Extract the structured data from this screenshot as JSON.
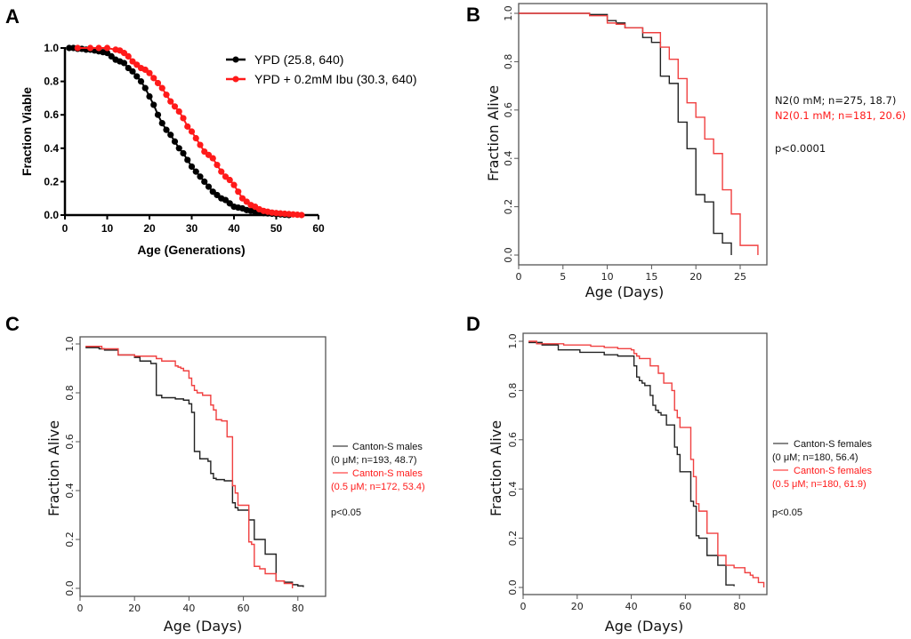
{
  "colors": {
    "black": "#111111",
    "red": "#ff1a1a",
    "red_line": "#f04040",
    "frame": "#555555"
  },
  "chart_data": [
    {
      "id": "A",
      "panel_label": "A",
      "type": "line",
      "style": "markers",
      "xlabel": "Age (Generations)",
      "ylabel": "Fraction Viable",
      "xlim": [
        0,
        60
      ],
      "ylim": [
        0,
        1.0
      ],
      "xticks": [
        0,
        10,
        20,
        30,
        40,
        50,
        60
      ],
      "yticks": [
        "0.0",
        "0.2",
        "0.4",
        "0.6",
        "0.8",
        "1.0"
      ],
      "legend_position": "top-right",
      "series": [
        {
          "name": "YPD (25.8, 640)",
          "color": "black",
          "x": [
            1,
            2,
            3,
            4,
            5,
            6,
            7,
            8,
            9,
            10,
            11,
            12,
            13,
            14,
            15,
            16,
            17,
            18,
            19,
            20,
            21,
            22,
            23,
            24,
            25,
            26,
            27,
            28,
            29,
            30,
            31,
            32,
            33,
            34,
            35,
            36,
            37,
            38,
            39,
            40,
            41,
            42,
            43,
            44,
            45,
            46,
            47,
            48,
            49,
            50,
            51,
            52,
            53
          ],
          "y": [
            1.0,
            1.0,
            0.995,
            0.995,
            0.99,
            0.99,
            0.985,
            0.98,
            0.975,
            0.97,
            0.95,
            0.93,
            0.92,
            0.91,
            0.88,
            0.86,
            0.83,
            0.8,
            0.76,
            0.71,
            0.66,
            0.6,
            0.55,
            0.51,
            0.48,
            0.44,
            0.4,
            0.37,
            0.33,
            0.29,
            0.26,
            0.23,
            0.2,
            0.17,
            0.14,
            0.12,
            0.1,
            0.09,
            0.07,
            0.05,
            0.045,
            0.04,
            0.03,
            0.025,
            0.02,
            0.015,
            0.012,
            0.01,
            0.008,
            0.006,
            0.004,
            0.002,
            0.0
          ]
        },
        {
          "name": "YPD + 0.2mM Ibu (30.3, 640)",
          "color": "red",
          "x": [
            3,
            6,
            8,
            10,
            12,
            13,
            14,
            15,
            16,
            17,
            18,
            19,
            20,
            21,
            22,
            23,
            24,
            25,
            26,
            27,
            28,
            29,
            30,
            31,
            32,
            33,
            34,
            35,
            36,
            37,
            38,
            39,
            40,
            41,
            42,
            43,
            44,
            45,
            46,
            47,
            48,
            49,
            50,
            51,
            52,
            53,
            54,
            55,
            56
          ],
          "y": [
            1.0,
            1.0,
            1.0,
            1.0,
            0.99,
            0.985,
            0.97,
            0.95,
            0.92,
            0.9,
            0.88,
            0.87,
            0.85,
            0.82,
            0.79,
            0.76,
            0.72,
            0.68,
            0.65,
            0.62,
            0.58,
            0.53,
            0.5,
            0.46,
            0.42,
            0.38,
            0.36,
            0.34,
            0.3,
            0.26,
            0.23,
            0.21,
            0.18,
            0.14,
            0.1,
            0.08,
            0.06,
            0.05,
            0.035,
            0.025,
            0.02,
            0.015,
            0.012,
            0.01,
            0.008,
            0.006,
            0.004,
            0.002,
            0.0
          ]
        }
      ]
    },
    {
      "id": "B",
      "panel_label": "B",
      "type": "line",
      "style": "step",
      "xlabel": "Age (Days)",
      "ylabel": "Fraction Alive",
      "xlim": [
        0,
        28
      ],
      "ylim": [
        0,
        1.0
      ],
      "xticks": [
        0,
        5,
        10,
        15,
        20,
        25
      ],
      "yticks": [
        "0.0",
        "0.2",
        "0.4",
        "0.6",
        "0.8",
        "1.0"
      ],
      "legend": [
        "N2(0 mM; n=275, 18.7)",
        "N2(0.1 mM; n=181, 20.6)"
      ],
      "pvalue": "p<0.0001",
      "series": [
        {
          "name": "N2(0 mM; n=275, 18.7)",
          "color": "black",
          "x": [
            0,
            8,
            10,
            11,
            12,
            14,
            15,
            16,
            17,
            18,
            19,
            20,
            21,
            22,
            23,
            24
          ],
          "y": [
            1.0,
            0.995,
            0.97,
            0.96,
            0.94,
            0.9,
            0.88,
            0.74,
            0.71,
            0.55,
            0.44,
            0.25,
            0.22,
            0.09,
            0.05,
            0.0
          ]
        },
        {
          "name": "N2(0.1 mM; n=181, 20.6)",
          "color": "red",
          "x": [
            0,
            8,
            10,
            11,
            12,
            14,
            16,
            17,
            18,
            19,
            20,
            21,
            22,
            23,
            24,
            25,
            27
          ],
          "y": [
            1.0,
            0.99,
            0.96,
            0.955,
            0.94,
            0.92,
            0.86,
            0.81,
            0.73,
            0.63,
            0.57,
            0.48,
            0.42,
            0.27,
            0.17,
            0.04,
            0.0
          ]
        }
      ]
    },
    {
      "id": "C",
      "panel_label": "C",
      "type": "line",
      "style": "step",
      "xlabel": "Age (Days)",
      "ylabel": "Fraction Alive",
      "xlim": [
        0,
        90
      ],
      "ylim": [
        0,
        1.0
      ],
      "xticks": [
        0,
        20,
        40,
        60,
        80
      ],
      "yticks": [
        "0.0",
        "0.2",
        "0.4",
        "0.6",
        "0.8",
        "1.0"
      ],
      "legend": [
        "Canton-S males",
        "(0 μM; n=193, 48.7)",
        "Canton-S males",
        "(0.5 μM; n=172, 53.4)"
      ],
      "pvalue": "p<0.05",
      "series": [
        {
          "name": "Canton-S males (0 μM; n=193, 48.7)",
          "color": "black",
          "x": [
            2,
            7,
            9,
            14,
            20,
            22,
            26,
            28,
            30,
            35,
            38,
            40,
            41,
            42,
            44,
            47,
            48,
            49,
            50,
            53,
            55,
            56,
            57,
            58,
            62,
            64,
            68,
            72,
            75,
            78,
            80,
            82
          ],
          "y": [
            0.985,
            0.98,
            0.975,
            0.955,
            0.945,
            0.93,
            0.92,
            0.79,
            0.78,
            0.775,
            0.77,
            0.755,
            0.72,
            0.56,
            0.53,
            0.52,
            0.47,
            0.45,
            0.445,
            0.44,
            0.44,
            0.35,
            0.33,
            0.32,
            0.28,
            0.2,
            0.14,
            0.03,
            0.025,
            0.015,
            0.01,
            0.005
          ]
        },
        {
          "name": "Canton-S males (0.5 μM; n=172, 53.4)",
          "color": "red",
          "x": [
            2,
            8,
            14,
            20,
            28,
            30,
            35,
            36,
            37,
            38,
            40,
            41,
            42,
            43,
            45,
            48,
            49,
            50,
            52,
            54,
            56,
            57,
            58,
            62,
            63,
            64,
            66,
            68,
            72,
            75,
            78
          ],
          "y": [
            0.99,
            0.98,
            0.955,
            0.95,
            0.94,
            0.93,
            0.91,
            0.905,
            0.9,
            0.89,
            0.86,
            0.83,
            0.81,
            0.8,
            0.79,
            0.75,
            0.73,
            0.69,
            0.685,
            0.62,
            0.42,
            0.39,
            0.34,
            0.19,
            0.18,
            0.09,
            0.08,
            0.06,
            0.03,
            0.02,
            0.0
          ]
        }
      ]
    },
    {
      "id": "D",
      "panel_label": "D",
      "type": "line",
      "style": "step",
      "xlabel": "Age (Days)",
      "ylabel": "Fraction Alive",
      "xlim": [
        0,
        90
      ],
      "ylim": [
        0,
        1.0
      ],
      "xticks": [
        0,
        20,
        40,
        60,
        80
      ],
      "yticks": [
        "0.0",
        "0.2",
        "0.4",
        "0.6",
        "0.8",
        "1.0"
      ],
      "legend": [
        "Canton-S females",
        "(0 μM; n=180, 56.4)",
        "Canton-S females",
        "(0.5 μM; n=180, 61.9)"
      ],
      "pvalue": "p<0.05",
      "series": [
        {
          "name": "Canton-S females (0 μM; n=180, 56.4)",
          "color": "black",
          "x": [
            2,
            7,
            13,
            21,
            30,
            35,
            41,
            42,
            43,
            44,
            45,
            47,
            48,
            49,
            50,
            51,
            53,
            54,
            56,
            57,
            58,
            62,
            63,
            64,
            65,
            68,
            72,
            75,
            78
          ],
          "y": [
            0.995,
            0.985,
            0.965,
            0.955,
            0.945,
            0.94,
            0.9,
            0.855,
            0.84,
            0.83,
            0.82,
            0.78,
            0.74,
            0.72,
            0.71,
            0.7,
            0.66,
            0.66,
            0.57,
            0.54,
            0.47,
            0.35,
            0.33,
            0.21,
            0.2,
            0.13,
            0.09,
            0.01,
            0.005
          ]
        },
        {
          "name": "Canton-S females (0.5 μM; n=180, 61.9)",
          "color": "red",
          "x": [
            2,
            5,
            15,
            25,
            30,
            35,
            40,
            41,
            42,
            43,
            47,
            50,
            52,
            55,
            56,
            57,
            58,
            62,
            63,
            64,
            65,
            68,
            72,
            75,
            78,
            82,
            84,
            85,
            87,
            89
          ],
          "y": [
            1.0,
            0.99,
            0.985,
            0.98,
            0.975,
            0.97,
            0.965,
            0.95,
            0.94,
            0.93,
            0.9,
            0.87,
            0.83,
            0.8,
            0.72,
            0.69,
            0.65,
            0.52,
            0.45,
            0.34,
            0.31,
            0.22,
            0.13,
            0.09,
            0.08,
            0.06,
            0.05,
            0.04,
            0.02,
            0.0
          ]
        }
      ]
    }
  ]
}
